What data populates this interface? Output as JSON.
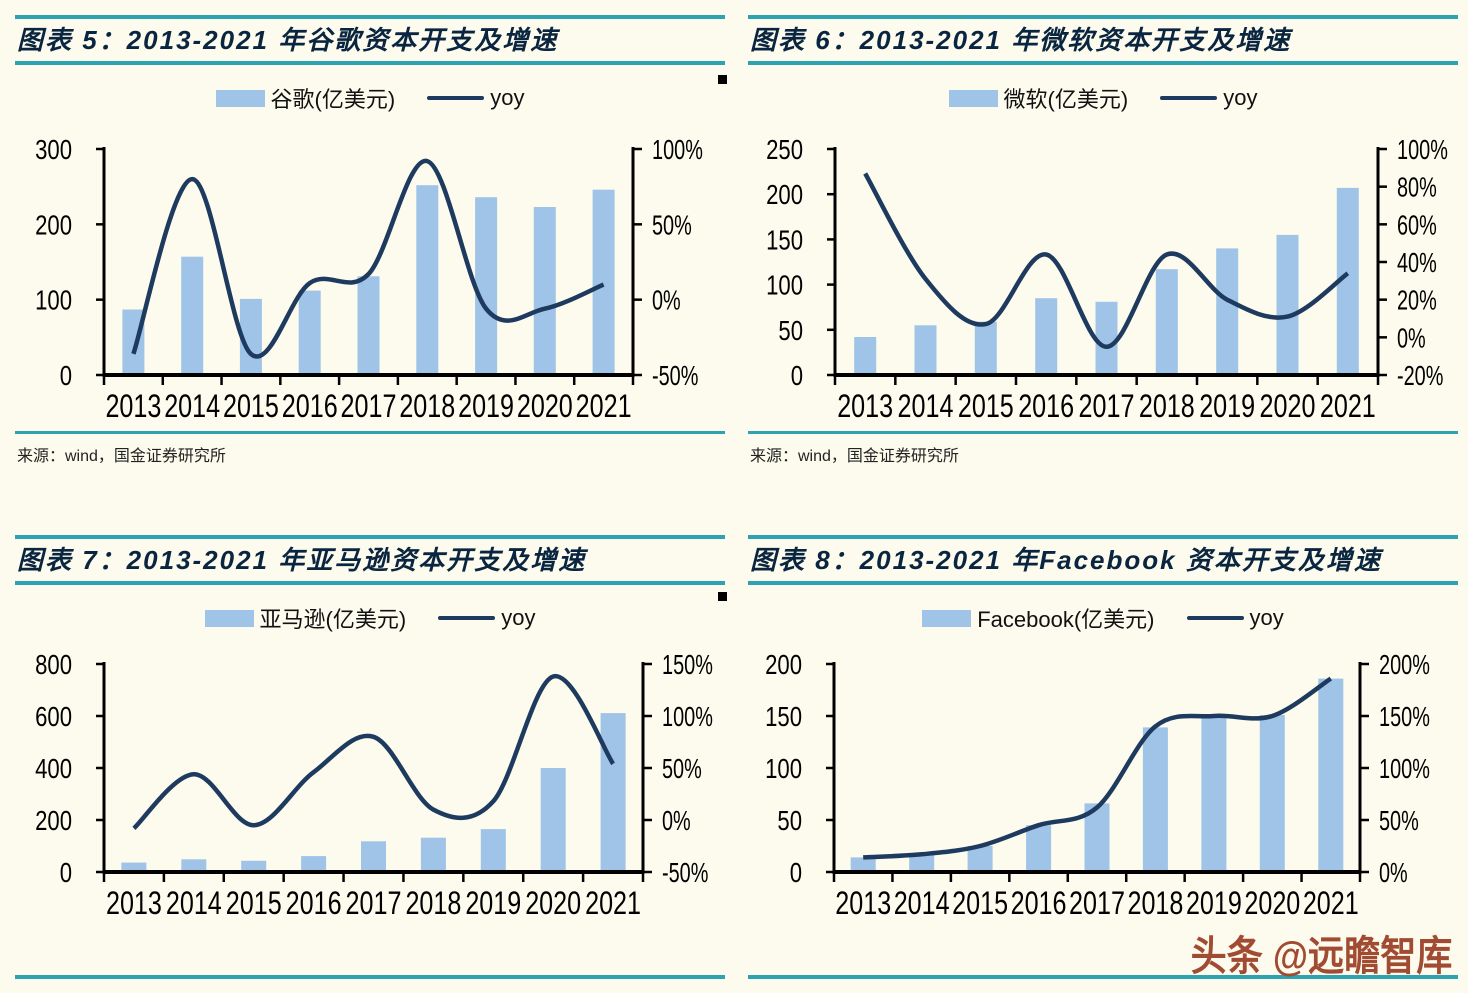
{
  "page": {
    "background": "#FCFBED",
    "accent_teal": "#2DA2B1",
    "bar_color": "#9FC4E7",
    "line_color": "#1E3A5F",
    "watermark": "头条 @远瞻智库",
    "watermark_color": "#a24b33"
  },
  "source_note": "来源：wind，国金证券研究所",
  "chart_data": [
    {
      "type": "bar+line",
      "figure_label": "图表 5：2013-2021 年谷歌资本开支及增速",
      "legend": [
        "谷歌(亿美元)",
        "yoy"
      ],
      "categories": [
        "2013",
        "2014",
        "2015",
        "2016",
        "2017",
        "2018",
        "2019",
        "2020",
        "2021"
      ],
      "series": [
        {
          "name": "谷歌(亿美元)",
          "type": "bar",
          "axis": "left",
          "values": [
            87,
            157,
            101,
            112,
            131,
            252,
            236,
            223,
            246
          ]
        },
        {
          "name": "yoy",
          "type": "line",
          "axis": "right",
          "values_percent": [
            -36,
            80,
            -36,
            11,
            17,
            92,
            -6,
            -6,
            10
          ]
        }
      ],
      "left_axis": {
        "min": 0,
        "max": 300,
        "ticks": [
          0,
          100,
          200,
          300
        ]
      },
      "right_axis": {
        "min": -50,
        "max": 100,
        "ticks": [
          "-50%",
          "0%",
          "50%",
          "100%"
        ]
      }
    },
    {
      "type": "bar+line",
      "figure_label": "图表 6：2013-2021 年微软资本开支及增速",
      "legend": [
        "微软(亿美元)",
        "yoy"
      ],
      "categories": [
        "2013",
        "2014",
        "2015",
        "2016",
        "2017",
        "2018",
        "2019",
        "2020",
        "2021"
      ],
      "series": [
        {
          "name": "微软(亿美元)",
          "type": "bar",
          "axis": "left",
          "values": [
            42,
            55,
            59,
            85,
            81,
            117,
            140,
            155,
            207
          ]
        },
        {
          "name": "yoy",
          "type": "line",
          "axis": "right",
          "values_percent": [
            87,
            31,
            7,
            44,
            -5,
            44,
            20,
            11,
            34
          ]
        }
      ],
      "left_axis": {
        "min": 0,
        "max": 250,
        "ticks": [
          0,
          50,
          100,
          150,
          200,
          250
        ]
      },
      "right_axis": {
        "min": -20,
        "max": 100,
        "ticks": [
          "-20%",
          "0%",
          "20%",
          "40%",
          "60%",
          "80%",
          "100%"
        ]
      }
    },
    {
      "type": "bar+line",
      "figure_label": "图表 7：2013-2021 年亚马逊资本开支及增速",
      "legend": [
        "亚马逊(亿美元)",
        "yoy"
      ],
      "categories": [
        "2013",
        "2014",
        "2015",
        "2016",
        "2017",
        "2018",
        "2019",
        "2020",
        "2021"
      ],
      "series": [
        {
          "name": "亚马逊(亿美元)",
          "type": "bar",
          "axis": "left",
          "values": [
            36,
            49,
            43,
            61,
            118,
            132,
            165,
            400,
            611
          ]
        },
        {
          "name": "yoy",
          "type": "line",
          "axis": "right",
          "values_percent": [
            -8,
            44,
            -5,
            46,
            80,
            10,
            18,
            138,
            54
          ]
        }
      ],
      "left_axis": {
        "min": 0,
        "max": 800,
        "ticks": [
          0,
          200,
          400,
          600,
          800
        ]
      },
      "right_axis": {
        "min": -50,
        "max": 150,
        "ticks": [
          "-50%",
          "0%",
          "50%",
          "100%",
          "150%"
        ]
      }
    },
    {
      "type": "bar+line",
      "figure_label": "图表 8：2013-2021 年Facebook 资本开支及增速",
      "legend": [
        "Facebook(亿美元)",
        "yoy"
      ],
      "categories": [
        "2013",
        "2014",
        "2015",
        "2016",
        "2017",
        "2018",
        "2019",
        "2020",
        "2021"
      ],
      "series": [
        {
          "name": "Facebook(亿美元)",
          "type": "bar",
          "axis": "left",
          "values": [
            14,
            18,
            25,
            45,
            66,
            139,
            151,
            151,
            186
          ]
        },
        {
          "name": "yoy",
          "type": "line",
          "axis": "right",
          "values_percent": [
            14,
            17,
            25,
            45,
            62,
            140,
            150,
            150,
            186
          ]
        }
      ],
      "left_axis": {
        "min": 0,
        "max": 200,
        "ticks": [
          0,
          50,
          100,
          150,
          200
        ]
      },
      "right_axis": {
        "min": 0,
        "max": 200,
        "ticks": [
          "0%",
          "50%",
          "100%",
          "150%",
          "200%"
        ]
      }
    }
  ]
}
